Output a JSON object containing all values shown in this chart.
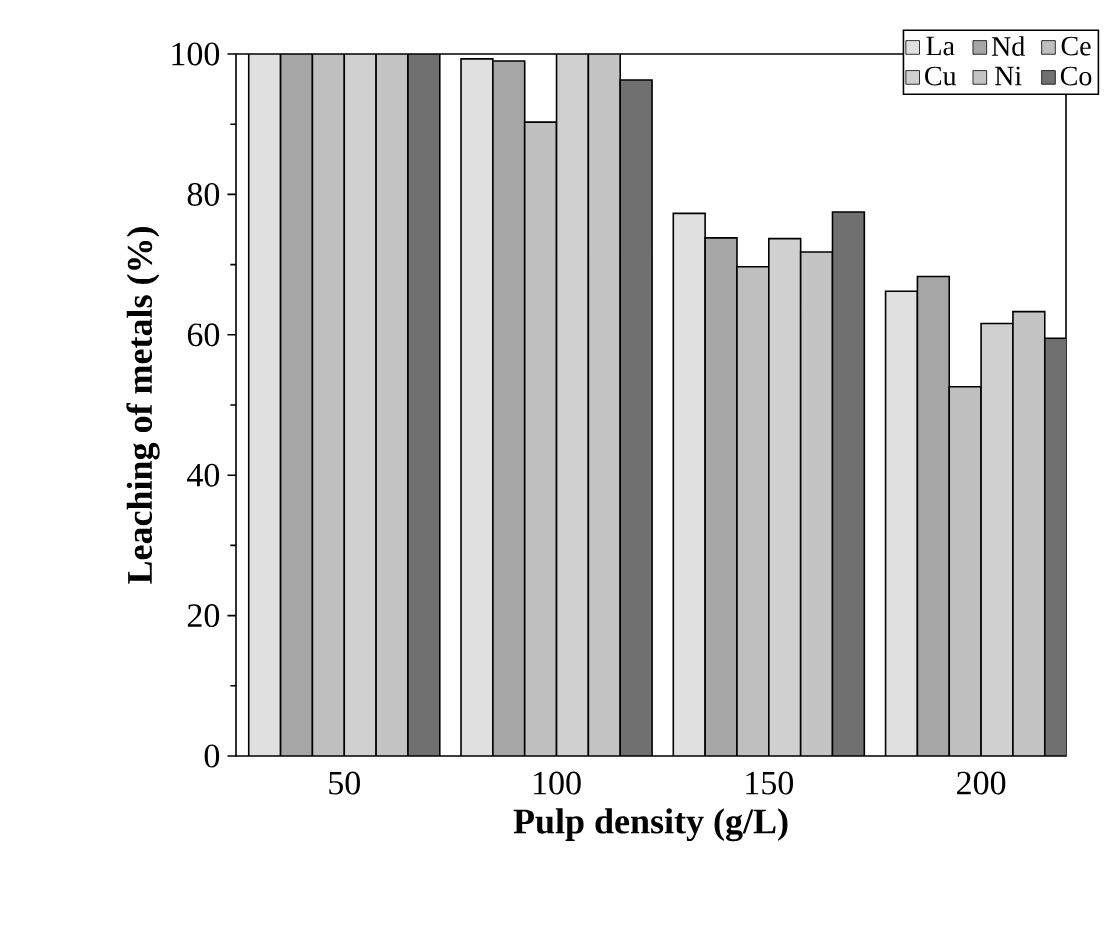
{
  "chart_data": {
    "type": "bar",
    "xlabel": "Pulp density (g/L)",
    "ylabel": "Leaching of metals (%)",
    "categories": [
      "50",
      "100",
      "150",
      "200"
    ],
    "series": [
      {
        "name": "La",
        "color": "#e0e0e0",
        "values": [
          100,
          99.3,
          77.3,
          66.2
        ]
      },
      {
        "name": "Nd",
        "color": "#a6a6a6",
        "values": [
          100,
          99,
          73.8,
          68.3
        ]
      },
      {
        "name": "Ce",
        "color": "#bfbfbf",
        "values": [
          100,
          90.3,
          69.7,
          52.6
        ]
      },
      {
        "name": "Cu",
        "color": "#d0d0d0",
        "values": [
          100,
          100,
          73.7,
          61.6
        ]
      },
      {
        "name": "Ni",
        "color": "#c4c4c4",
        "values": [
          100,
          100,
          71.8,
          63.3
        ]
      },
      {
        "name": "Co",
        "color": "#707070",
        "values": [
          100,
          96.3,
          77.5,
          59.5
        ]
      }
    ],
    "ylim": [
      0,
      100
    ],
    "yticks": [
      0,
      20,
      40,
      60,
      80,
      100
    ],
    "legend": "top right"
  }
}
